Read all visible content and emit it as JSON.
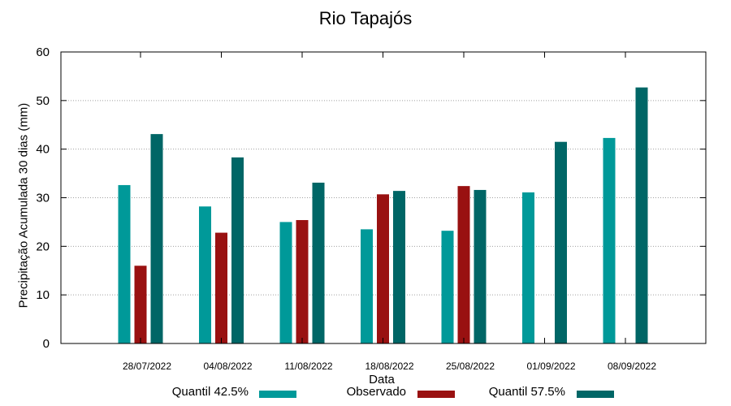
{
  "chart_data": {
    "type": "bar",
    "title": "Rio Tapajós",
    "xlabel": "Data",
    "ylabel": "Precipitação Acumulada 30 dias (mm)",
    "ylim": [
      0,
      60
    ],
    "yticks": [
      0,
      10,
      20,
      30,
      40,
      50,
      60
    ],
    "grid": true,
    "legend_position": "bottom",
    "categories": [
      "28/07/2022",
      "04/08/2022",
      "11/08/2022",
      "18/08/2022",
      "25/08/2022",
      "01/09/2022",
      "08/09/2022"
    ],
    "series": [
      {
        "name": "Quantil 42.5%",
        "color": "#009999",
        "values": [
          32.6,
          28.2,
          25.0,
          23.5,
          23.2,
          31.1,
          42.3
        ]
      },
      {
        "name": "Observado",
        "color": "#991111",
        "values": [
          16.0,
          22.8,
          25.4,
          30.7,
          32.4,
          null,
          null
        ]
      },
      {
        "name": "Quantil 57.5%",
        "color": "#006666",
        "values": [
          43.1,
          38.3,
          33.1,
          31.4,
          31.6,
          41.5,
          52.7
        ]
      }
    ]
  }
}
